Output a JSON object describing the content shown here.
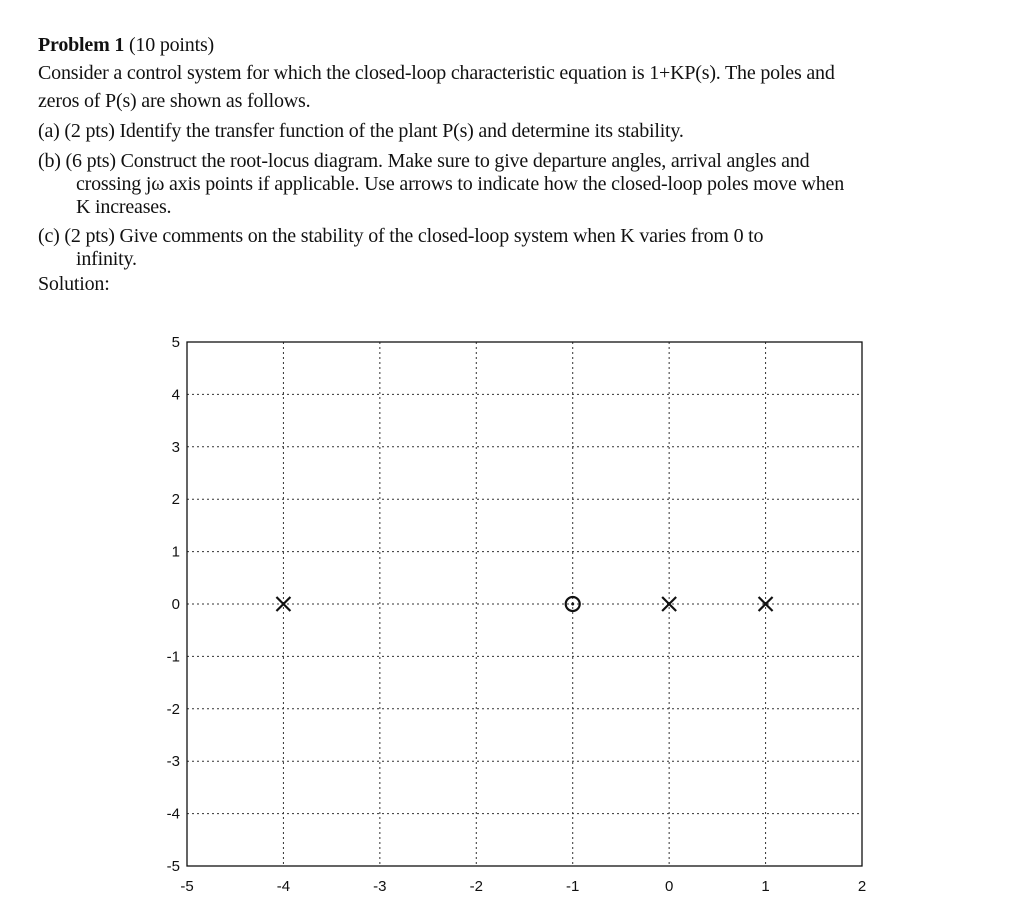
{
  "problem": {
    "heading": "Problem 1",
    "points": "(10 points)",
    "intro_1": "Consider a control system for which the closed-loop characteristic equation is 1+KP(s). The poles and",
    "intro_2": "zeros of P(s) are shown as follows.",
    "part_a": "(a) (2 pts) Identify the transfer function of the plant P(s) and determine its stability.",
    "part_b_1": "(b) (6 pts) Construct the root-locus diagram. Make sure to give departure angles, arrival angles and",
    "part_b_2": "crossing jω axis points if applicable. Use arrows to indicate how the closed-loop poles move when",
    "part_b_3": "K increases.",
    "part_c_1": "(c) (2 pts) Give comments on the stability of the closed-loop system when K varies from 0 to",
    "part_c_2": "infinity.",
    "solution_label": "Solution:"
  },
  "chart_data": {
    "type": "scatter",
    "title": "",
    "xlabel": "",
    "ylabel": "",
    "xlim": [
      -5,
      2
    ],
    "ylim": [
      -5,
      5
    ],
    "x_ticks": [
      -5,
      -4,
      -3,
      -2,
      -1,
      0,
      1,
      2
    ],
    "y_ticks": [
      5,
      4,
      3,
      2,
      1,
      0,
      -1,
      -2,
      -3,
      -4,
      -5
    ],
    "grid": true,
    "grid_style": "dotted",
    "series": [
      {
        "marker": "x",
        "points": [
          [
            -4,
            0
          ],
          [
            0,
            0
          ],
          [
            1,
            0
          ]
        ]
      },
      {
        "marker": "o",
        "points": [
          [
            -1,
            0
          ]
        ]
      }
    ]
  }
}
